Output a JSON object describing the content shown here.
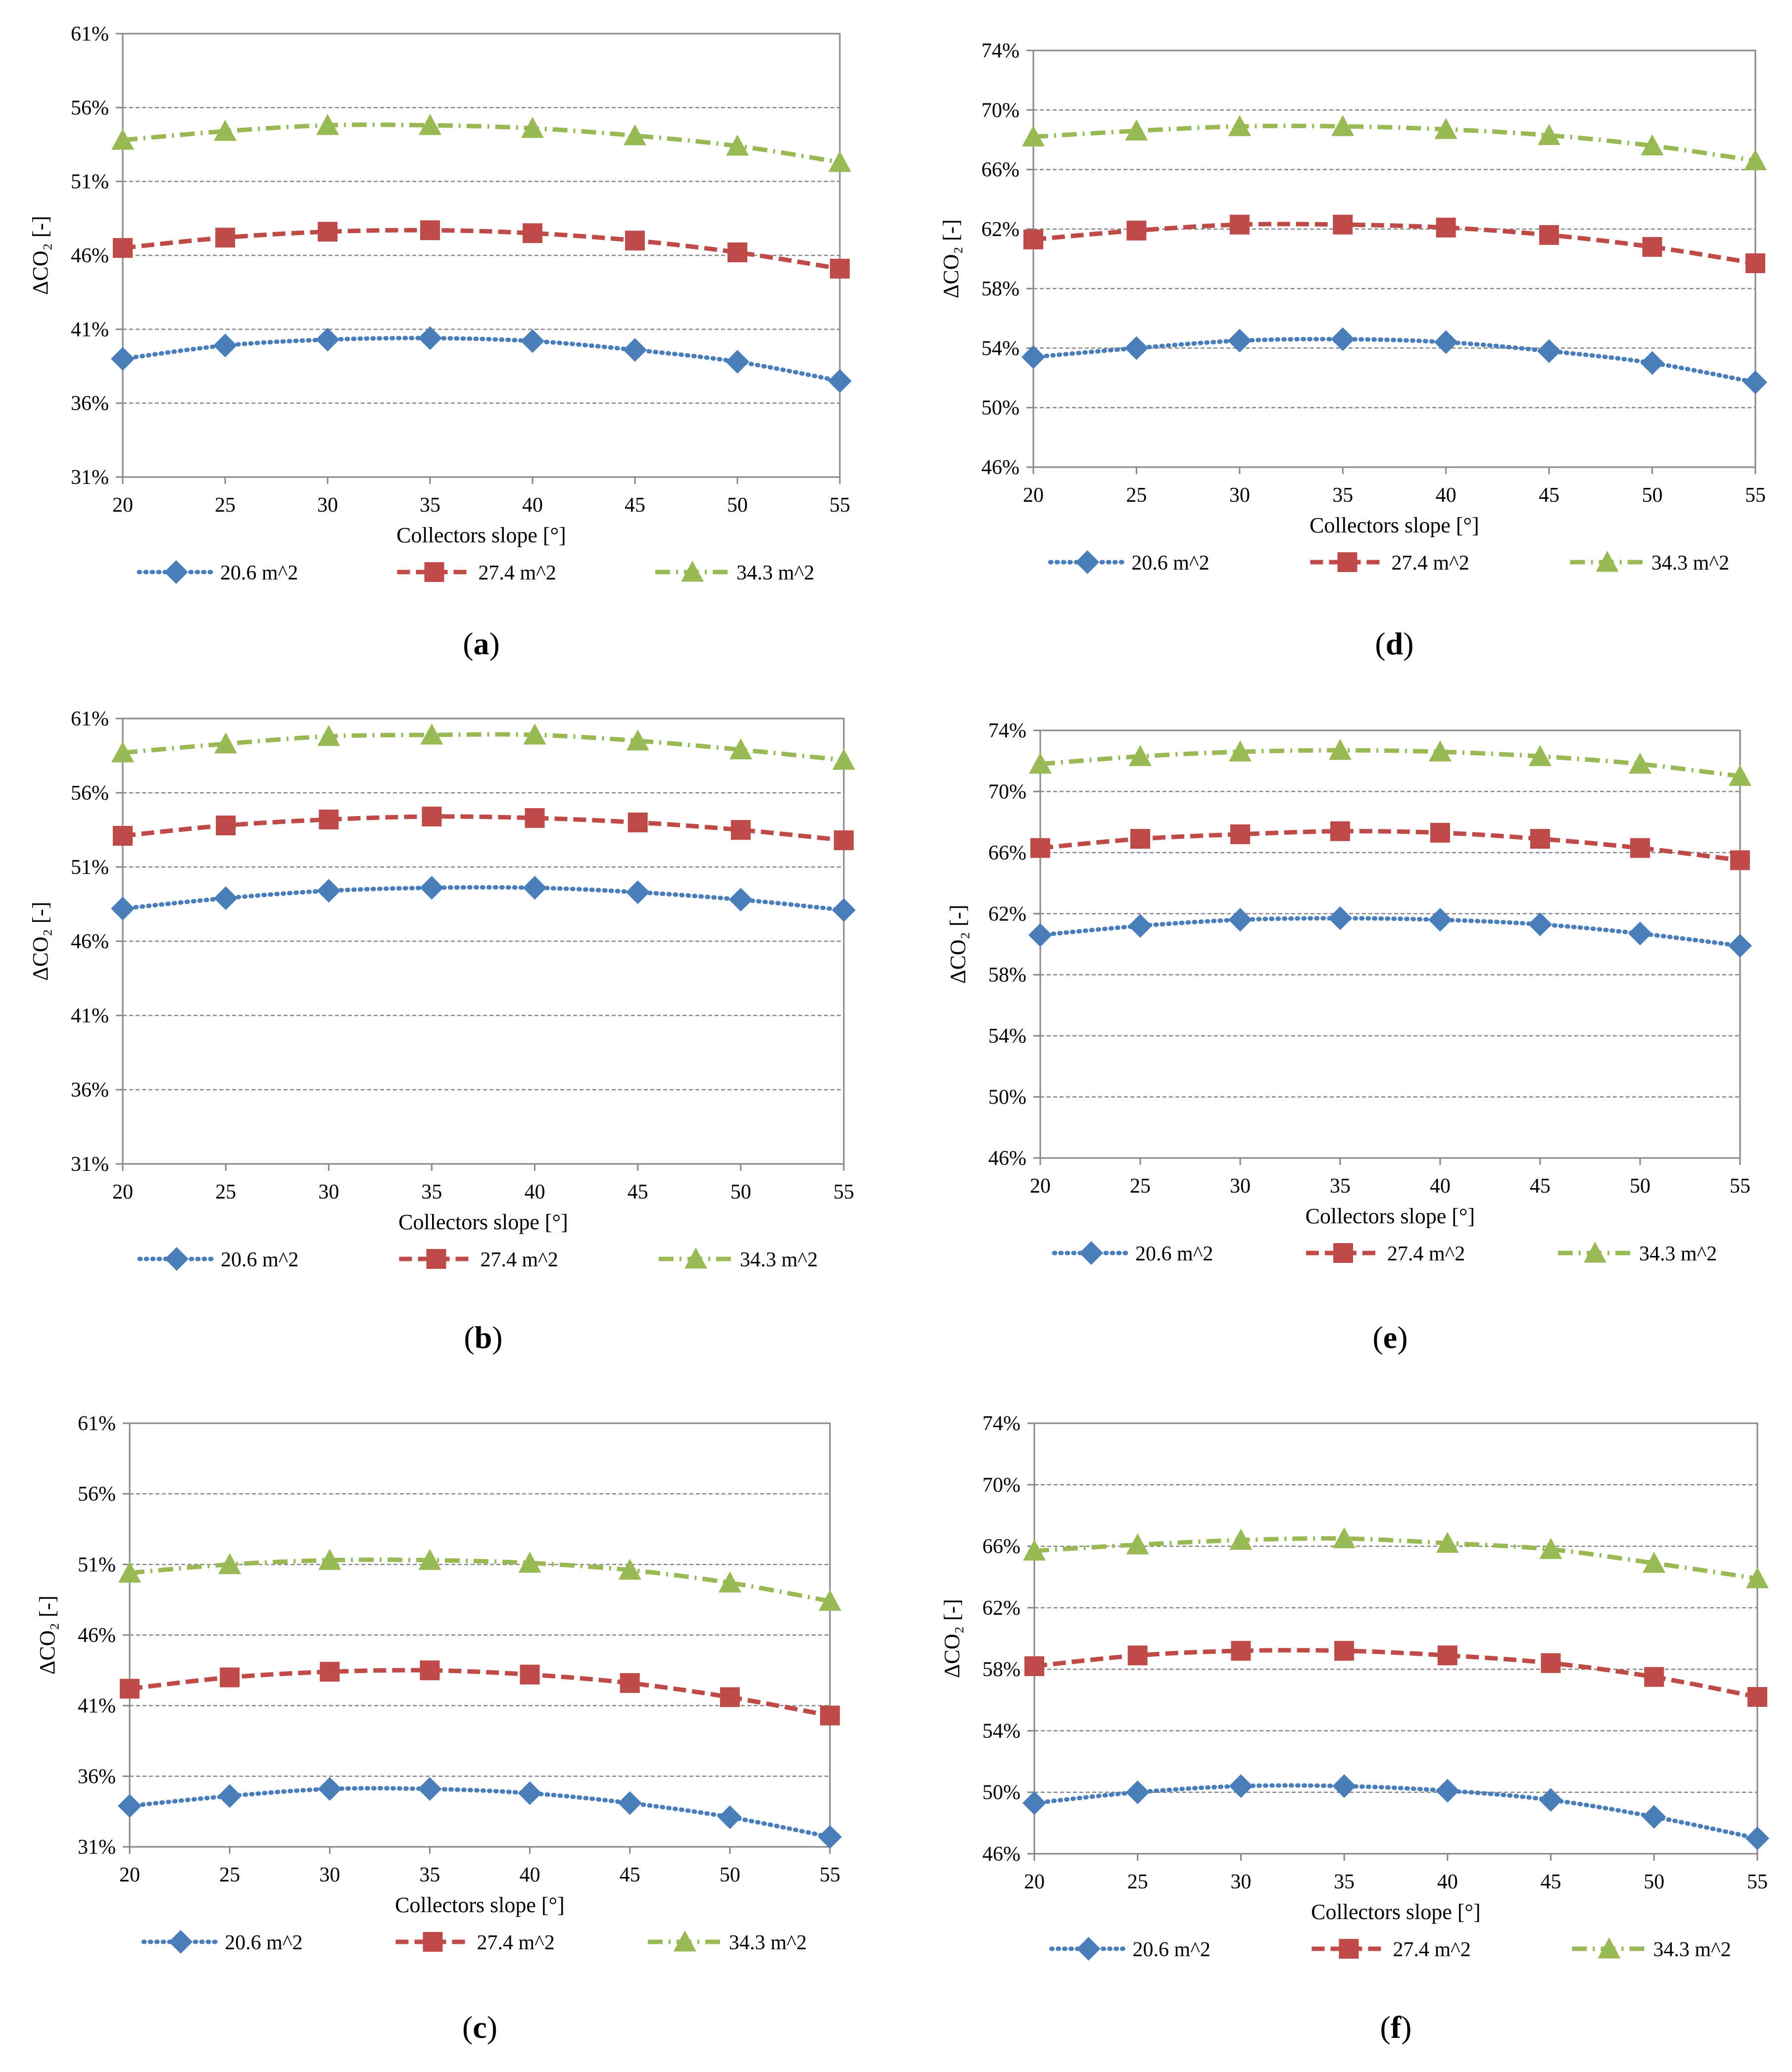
{
  "figure": {
    "series_names": [
      "20.6 m^2",
      "27.4 m^2",
      "34.3 m^2"
    ],
    "colors": {
      "s1": "#4a7ebb",
      "s2": "#be4b48",
      "s3": "#98b954",
      "grid": "#868686",
      "axis": "#868686"
    }
  },
  "chart_data": [
    {
      "panel": "a",
      "caption": "(a)",
      "type": "line",
      "xlabel": "Collectors slope [°]",
      "ylabel": "ΔCO₂ [-]",
      "x": [
        20,
        25,
        30,
        35,
        40,
        45,
        50,
        55
      ],
      "ylim": [
        31,
        61
      ],
      "yticks": [
        "31%",
        "36%",
        "41%",
        "46%",
        "51%",
        "56%",
        "61%"
      ],
      "series": [
        {
          "name": "20.6 m^2",
          "values": [
            39.0,
            39.9,
            40.3,
            40.4,
            40.2,
            39.6,
            38.8,
            37.5
          ]
        },
        {
          "name": "27.4 m^2",
          "values": [
            46.5,
            47.2,
            47.6,
            47.7,
            47.5,
            47.0,
            46.2,
            45.1
          ]
        },
        {
          "name": "34.3 m^2",
          "values": [
            53.8,
            54.4,
            54.8,
            54.8,
            54.6,
            54.1,
            53.4,
            52.3
          ]
        }
      ]
    },
    {
      "panel": "b",
      "caption": "(b)",
      "type": "line",
      "xlabel": "Collectors slope [°]",
      "ylabel": "ΔCO₂ [-]",
      "x": [
        20,
        25,
        30,
        35,
        40,
        45,
        50,
        55
      ],
      "ylim": [
        31,
        61
      ],
      "yticks": [
        "31%",
        "36%",
        "41%",
        "46%",
        "51%",
        "56%",
        "61%"
      ],
      "series": [
        {
          "name": "20.6 m^2",
          "values": [
            48.2,
            48.9,
            49.4,
            49.6,
            49.6,
            49.3,
            48.8,
            48.1
          ]
        },
        {
          "name": "27.4 m^2",
          "values": [
            53.1,
            53.8,
            54.2,
            54.4,
            54.3,
            54.0,
            53.5,
            52.8
          ]
        },
        {
          "name": "34.3 m^2",
          "values": [
            58.7,
            59.3,
            59.8,
            59.9,
            59.9,
            59.5,
            58.9,
            58.2
          ]
        }
      ]
    },
    {
      "panel": "c",
      "caption": "(c)",
      "type": "line",
      "xlabel": "Collectors slope [°]",
      "ylabel": "ΔCO₂ [-]",
      "x": [
        20,
        25,
        30,
        35,
        40,
        45,
        50,
        55
      ],
      "ylim": [
        31,
        61
      ],
      "yticks": [
        "31%",
        "36%",
        "41%",
        "46%",
        "51%",
        "56%",
        "61%"
      ],
      "series": [
        {
          "name": "20.6 m^2",
          "values": [
            33.9,
            34.6,
            35.1,
            35.1,
            34.8,
            34.1,
            33.1,
            31.7
          ]
        },
        {
          "name": "27.4 m^2",
          "values": [
            42.2,
            43.0,
            43.4,
            43.5,
            43.2,
            42.6,
            41.6,
            40.3
          ]
        },
        {
          "name": "34.3 m^2",
          "values": [
            50.4,
            51.0,
            51.3,
            51.3,
            51.1,
            50.6,
            49.7,
            48.4
          ]
        }
      ]
    },
    {
      "panel": "d",
      "caption": "(d)",
      "type": "line",
      "xlabel": "Collectors slope [°]",
      "ylabel": "ΔCO₂ [-]",
      "x": [
        20,
        25,
        30,
        35,
        40,
        45,
        50,
        55
      ],
      "ylim": [
        46,
        74
      ],
      "yticks": [
        "46%",
        "50%",
        "54%",
        "58%",
        "62%",
        "66%",
        "70%",
        "74%"
      ],
      "series": [
        {
          "name": "20.6 m^2",
          "values": [
            53.4,
            54.0,
            54.5,
            54.6,
            54.4,
            53.8,
            53.0,
            51.7
          ]
        },
        {
          "name": "27.4 m^2",
          "values": [
            61.3,
            61.9,
            62.3,
            62.3,
            62.1,
            61.6,
            60.8,
            59.7
          ]
        },
        {
          "name": "34.3 m^2",
          "values": [
            68.2,
            68.6,
            68.9,
            68.9,
            68.7,
            68.3,
            67.6,
            66.6
          ]
        }
      ]
    },
    {
      "panel": "e",
      "caption": "(e)",
      "type": "line",
      "xlabel": "Collectors slope [°]",
      "ylabel": "ΔCO₂ [-]",
      "x": [
        20,
        25,
        30,
        35,
        40,
        45,
        50,
        55
      ],
      "ylim": [
        46,
        74
      ],
      "yticks": [
        "46%",
        "50%",
        "54%",
        "58%",
        "62%",
        "66%",
        "70%",
        "74%"
      ],
      "series": [
        {
          "name": "20.6 m^2",
          "values": [
            60.6,
            61.2,
            61.6,
            61.7,
            61.6,
            61.3,
            60.7,
            59.9
          ]
        },
        {
          "name": "27.4 m^2",
          "values": [
            66.3,
            66.9,
            67.2,
            67.4,
            67.3,
            66.9,
            66.3,
            65.5
          ]
        },
        {
          "name": "34.3 m^2",
          "values": [
            71.8,
            72.3,
            72.6,
            72.7,
            72.6,
            72.3,
            71.8,
            71.0
          ]
        }
      ]
    },
    {
      "panel": "f",
      "caption": "(f)",
      "type": "line",
      "xlabel": "Collectors slope [°]",
      "ylabel": "ΔCO₂ [-]",
      "x": [
        20,
        25,
        30,
        35,
        40,
        45,
        50,
        55
      ],
      "ylim": [
        46,
        74
      ],
      "yticks": [
        "46%",
        "50%",
        "54%",
        "58%",
        "62%",
        "66%",
        "70%",
        "74%"
      ],
      "series": [
        {
          "name": "20.6 m^2",
          "values": [
            49.3,
            50.0,
            50.4,
            50.4,
            50.1,
            49.5,
            48.4,
            47.0
          ]
        },
        {
          "name": "27.4 m^2",
          "values": [
            58.2,
            58.9,
            59.2,
            59.2,
            58.9,
            58.4,
            57.5,
            56.2
          ]
        },
        {
          "name": "34.3 m^2",
          "values": [
            65.7,
            66.1,
            66.4,
            66.5,
            66.2,
            65.8,
            64.9,
            63.9
          ]
        }
      ]
    }
  ]
}
